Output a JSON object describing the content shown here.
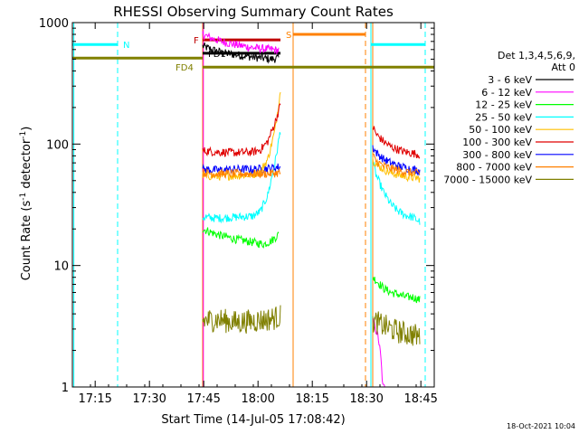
{
  "chart_data": {
    "type": "line",
    "title": "RHESSI Observing Summary Count Rates",
    "xlabel": "Start Time (14-Jul-05 17:08:42)",
    "ylabel_main": "Count Rate (s",
    "ylabel_sup1": "-1",
    "ylabel_mid": " detector",
    "ylabel_sup2": "-1",
    "ylabel_end": ")",
    "y_scale": "log",
    "ylim": [
      1,
      1000
    ],
    "x_unit": "minutes after 17:08:42",
    "xlim": [
      0,
      100
    ],
    "x_ticks": [
      {
        "x": 6.3,
        "label": "17:15"
      },
      {
        "x": 21.3,
        "label": "17:30"
      },
      {
        "x": 36.3,
        "label": "17:45"
      },
      {
        "x": 51.3,
        "label": "18:00"
      },
      {
        "x": 66.3,
        "label": "18:15"
      },
      {
        "x": 81.3,
        "label": "18:30"
      },
      {
        "x": 96.3,
        "label": "18:45"
      }
    ],
    "y_ticks": [
      {
        "y": 1,
        "label": "1"
      },
      {
        "y": 10,
        "label": "10"
      },
      {
        "y": 100,
        "label": "100"
      },
      {
        "y": 1000,
        "label": "1000"
      }
    ],
    "legend_header_1": "Det 1,3,4,5,6,9,",
    "legend_header_2": "Att 0",
    "legend_position": "right",
    "series": [
      {
        "name": "3 - 6 keV",
        "color": "#000000",
        "segments": [
          {
            "x": [
              36.0,
              38.5,
              42.0,
              46.0,
              50.0,
              55.0,
              57.0
            ],
            "y": [
              640,
              600,
              560,
              540,
              520,
              500,
              510
            ]
          }
        ]
      },
      {
        "name": "6 - 12 keV",
        "color": "#ff00ff",
        "segments": [
          {
            "x": [
              36.0,
              38.5,
              42.0,
              46.0,
              50.0,
              55.0,
              57.0
            ],
            "y": [
              800,
              740,
              690,
              650,
              620,
              600,
              590
            ]
          },
          {
            "x": [
              83.0,
              84.5,
              85.2,
              85.8,
              86.5
            ],
            "y": [
              3.5,
              2.6,
              1.8,
              1.0,
              1.0
            ]
          }
        ]
      },
      {
        "name": "12 - 25 keV",
        "color": "#00ff00",
        "segments": [
          {
            "x": [
              36.0,
              40.0,
              45.0,
              50.0,
              53.0,
              55.0,
              57.0
            ],
            "y": [
              20,
              18,
              16.5,
              15.5,
              15,
              16,
              18
            ]
          },
          {
            "x": [
              83.0,
              84.0,
              86.0,
              88.0,
              90.0,
              92.0,
              94.0,
              96.0
            ],
            "y": [
              8,
              7.5,
              6.5,
              6.0,
              5.8,
              5.5,
              5.5,
              5.2
            ]
          }
        ]
      },
      {
        "name": "25 - 50 keV",
        "color": "#00ffff",
        "segments": [
          {
            "x": [
              36.0,
              40.0,
              45.0,
              50.0,
              52.0,
              54.0,
              56.0,
              57.5
            ],
            "y": [
              25,
              24.5,
              25,
              25.5,
              28,
              38,
              70,
              130
            ]
          },
          {
            "x": [
              83.0,
              84.0,
              86.0,
              88.0,
              90.0,
              92.0,
              94.0,
              96.0
            ],
            "y": [
              70,
              55,
              40,
              32,
              28,
              26,
              25,
              23
            ]
          }
        ]
      },
      {
        "name": "50 - 100 keV",
        "color": "#ffbf00",
        "segments": [
          {
            "x": [
              36.0,
              40.0,
              45.0,
              50.0,
              52.0,
              54.0,
              56.0,
              57.5
            ],
            "y": [
              55,
              54,
              55,
              56,
              60,
              75,
              130,
              280
            ]
          },
          {
            "x": [
              83.0,
              84.0,
              86.0,
              88.0,
              90.0,
              92.0,
              94.0,
              96.0
            ],
            "y": [
              75,
              68,
              62,
              58,
              56,
              54,
              53,
              52
            ]
          }
        ]
      },
      {
        "name": "100 - 300 keV",
        "color": "#e00000",
        "segments": [
          {
            "x": [
              36.0,
              40.0,
              45.0,
              50.0,
              52.0,
              54.0,
              56.0,
              57.5
            ],
            "y": [
              88,
              86,
              85,
              86,
              90,
              105,
              150,
              210
            ]
          },
          {
            "x": [
              83.0,
              84.0,
              86.0,
              88.0,
              90.0,
              92.0,
              94.0,
              96.0
            ],
            "y": [
              140,
              120,
              105,
              95,
              90,
              86,
              84,
              82
            ]
          }
        ]
      },
      {
        "name": "300 - 800 keV",
        "color": "#0000ff",
        "segments": [
          {
            "x": [
              36.0,
              40.0,
              45.0,
              50.0,
              54.0,
              57.5
            ],
            "y": [
              62,
              61,
              62,
              62,
              63,
              65
            ]
          },
          {
            "x": [
              83.0,
              84.0,
              86.0,
              88.0,
              90.0,
              92.0,
              94.0,
              96.0
            ],
            "y": [
              95,
              85,
              75,
              70,
              66,
              64,
              62,
              60
            ]
          }
        ]
      },
      {
        "name": "800 - 7000 keV",
        "color": "#ff8000",
        "segments": [
          {
            "x": [
              36.0,
              40.0,
              45.0,
              50.0,
              54.0,
              57.5
            ],
            "y": [
              58,
              57,
              57,
              57,
              57,
              58
            ]
          },
          {
            "x": [
              83.0,
              84.0,
              86.0,
              88.0,
              90.0,
              92.0,
              94.0,
              96.0
            ],
            "y": [
              80,
              72,
              66,
              63,
              61,
              59,
              58,
              57
            ]
          }
        ]
      },
      {
        "name": "7000 - 15000 keV",
        "color": "#808000",
        "segments": [
          {
            "x": [
              36.0,
              40.0,
              45.0,
              50.0,
              54.0,
              57.5
            ],
            "y": [
              3.5,
              3.6,
              3.4,
              3.5,
              3.6,
              3.8
            ]
          },
          {
            "x": [
              83.0,
              85.0,
              88.0,
              91.0,
              94.0,
              96.0
            ],
            "y": [
              3.5,
              3.3,
              3.0,
              2.8,
              2.7,
              2.6
            ]
          }
        ]
      }
    ],
    "intervals": [
      {
        "label": "N",
        "color": "#00ffff",
        "y": 660,
        "x0": 0,
        "x1": 12.5,
        "label_x": 14.0
      },
      {
        "label": "N",
        "color": "#00ffff",
        "y": 660,
        "x0": 82.5,
        "x1": 97.5
      },
      {
        "label": "F",
        "color": "#c00000",
        "y": 720,
        "x0": 36.0,
        "x1": 57.5,
        "label_x": 33.5
      },
      {
        "label": "S",
        "color": "#ff8000",
        "y": 800,
        "x0": 61.0,
        "x1": 81.0,
        "label_x": 59.0
      },
      {
        "label": "FD1",
        "color": "#000000",
        "y": 560,
        "x0": 36.0,
        "x1": 57.5,
        "label_x": 37.5
      },
      {
        "label": "FD4",
        "color": "#808000",
        "y": 430,
        "x0": 36.0,
        "x1": 100,
        "label_x": 28.5
      },
      {
        "label": "",
        "color": "#808000",
        "y": 510,
        "x0": 0,
        "x1": 36.0
      }
    ],
    "vlines": [
      {
        "x": 0.4,
        "color": "#00ffff",
        "dashed": false
      },
      {
        "x": 12.5,
        "color": "#00ffff",
        "dashed": true
      },
      {
        "x": 36.0,
        "color": "#ff8000",
        "dashed": false
      },
      {
        "x": 36.2,
        "color": "#ff00ff",
        "dashed": false
      },
      {
        "x": 61.0,
        "color": "#ff8000",
        "dashed": false
      },
      {
        "x": 81.0,
        "color": "#ff8000",
        "dashed": true
      },
      {
        "x": 82.5,
        "color": "#00ffff",
        "dashed": false
      },
      {
        "x": 83.0,
        "color": "#ff8000",
        "dashed": false
      },
      {
        "x": 97.5,
        "color": "#00ffff",
        "dashed": true
      }
    ],
    "date_stamp": "18-Oct-2021 10:04"
  }
}
